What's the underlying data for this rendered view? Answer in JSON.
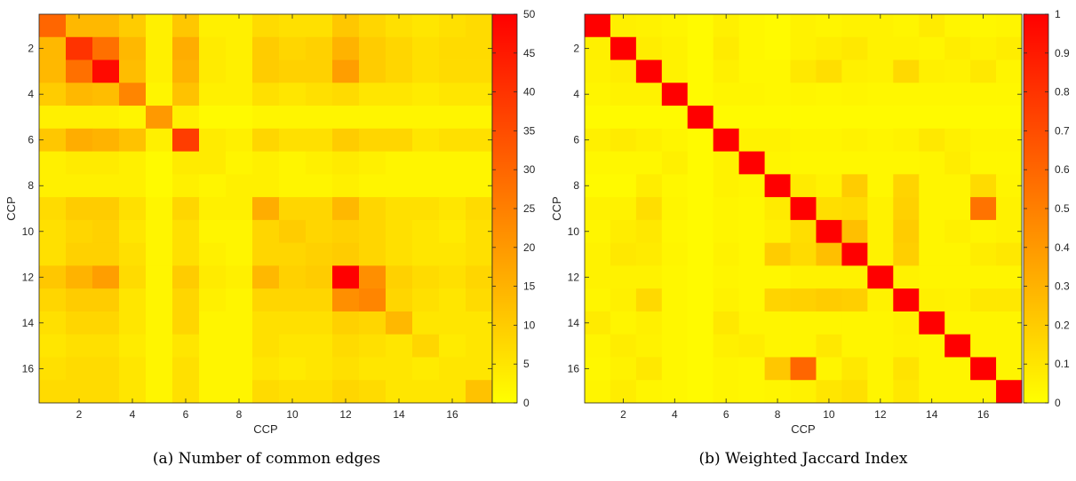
{
  "chart_data": [
    {
      "type": "heatmap",
      "caption": "(a) Number of common edges",
      "xlabel": "CCP",
      "ylabel": "CCP",
      "x_ticks": [
        2,
        4,
        6,
        8,
        10,
        12,
        14,
        16
      ],
      "y_ticks": [
        2,
        4,
        6,
        8,
        10,
        12,
        14,
        16
      ],
      "colorbar": {
        "min": 0,
        "max": 50,
        "ticks": [
          0,
          5,
          10,
          15,
          20,
          25,
          30,
          35,
          40,
          45,
          50
        ]
      },
      "colors": {
        "low": "#ffff00",
        "high": "#ff0000"
      },
      "values": [
        [
          30,
          14,
          14,
          10,
          3,
          11,
          3,
          3,
          7,
          6,
          6,
          11,
          8,
          6,
          5,
          6,
          7
        ],
        [
          14,
          40,
          28,
          14,
          3,
          16,
          4,
          3,
          10,
          8,
          9,
          15,
          10,
          8,
          6,
          7,
          7
        ],
        [
          14,
          28,
          48,
          13,
          3,
          15,
          4,
          3,
          10,
          9,
          9,
          19,
          10,
          8,
          6,
          7,
          7
        ],
        [
          10,
          14,
          13,
          24,
          2,
          12,
          3,
          3,
          6,
          5,
          6,
          7,
          5,
          5,
          4,
          5,
          5
        ],
        [
          3,
          3,
          3,
          2,
          20,
          3,
          1,
          1,
          2,
          2,
          2,
          2,
          2,
          2,
          2,
          2,
          2
        ],
        [
          11,
          16,
          15,
          12,
          3,
          38,
          4,
          3,
          8,
          6,
          6,
          10,
          8,
          8,
          5,
          6,
          6
        ],
        [
          3,
          4,
          4,
          3,
          1,
          4,
          4,
          2,
          3,
          2,
          3,
          4,
          3,
          2,
          2,
          2,
          2
        ],
        [
          3,
          3,
          3,
          3,
          1,
          3,
          2,
          3,
          3,
          2,
          2,
          3,
          2,
          2,
          2,
          2,
          2
        ],
        [
          7,
          10,
          10,
          6,
          2,
          8,
          3,
          3,
          16,
          8,
          8,
          14,
          8,
          6,
          6,
          5,
          7
        ],
        [
          6,
          8,
          9,
          5,
          2,
          6,
          2,
          2,
          8,
          10,
          8,
          9,
          8,
          6,
          5,
          4,
          6
        ],
        [
          6,
          9,
          9,
          6,
          2,
          6,
          3,
          2,
          8,
          8,
          9,
          10,
          8,
          6,
          5,
          5,
          6
        ],
        [
          11,
          15,
          19,
          7,
          2,
          10,
          4,
          3,
          14,
          9,
          10,
          50,
          22,
          9,
          7,
          6,
          8
        ],
        [
          8,
          10,
          10,
          5,
          2,
          8,
          3,
          2,
          8,
          8,
          8,
          22,
          24,
          8,
          6,
          5,
          7
        ],
        [
          6,
          8,
          8,
          5,
          2,
          8,
          2,
          2,
          6,
          6,
          6,
          9,
          8,
          14,
          5,
          5,
          5
        ],
        [
          5,
          6,
          6,
          4,
          2,
          5,
          2,
          2,
          6,
          5,
          5,
          7,
          6,
          5,
          8,
          4,
          5
        ],
        [
          6,
          7,
          7,
          5,
          2,
          6,
          2,
          2,
          5,
          4,
          5,
          6,
          5,
          5,
          4,
          5,
          5
        ],
        [
          7,
          7,
          7,
          5,
          2,
          6,
          2,
          2,
          7,
          6,
          6,
          8,
          7,
          5,
          5,
          5,
          12
        ]
      ]
    },
    {
      "type": "heatmap",
      "caption": "(b) Weighted Jaccard Index",
      "xlabel": "CCP",
      "ylabel": "CCP",
      "x_ticks": [
        2,
        4,
        6,
        8,
        10,
        12,
        14,
        16
      ],
      "y_ticks": [
        2,
        4,
        6,
        8,
        10,
        12,
        14,
        16
      ],
      "colorbar": {
        "min": 0,
        "max": 1,
        "ticks": [
          0,
          0.1,
          0.2,
          0.3,
          0.4,
          0.5,
          0.6,
          0.7,
          0.8,
          0.9,
          1
        ]
      },
      "colors": {
        "low": "#ffff00",
        "high": "#ff0000"
      },
      "values": [
        [
          1,
          0.06,
          0.05,
          0.04,
          0.02,
          0.06,
          0.03,
          0.02,
          0.05,
          0.04,
          0.05,
          0.05,
          0.04,
          0.08,
          0.04,
          0.03,
          0.04
        ],
        [
          0.06,
          1,
          0.07,
          0.05,
          0.02,
          0.08,
          0.03,
          0.02,
          0.05,
          0.07,
          0.09,
          0.05,
          0.05,
          0.04,
          0.07,
          0.05,
          0.07
        ],
        [
          0.05,
          0.07,
          1,
          0.05,
          0.02,
          0.06,
          0.03,
          0.03,
          0.09,
          0.13,
          0.06,
          0.05,
          0.15,
          0.06,
          0.05,
          0.09,
          0.04
        ],
        [
          0.04,
          0.05,
          0.05,
          1,
          0.02,
          0.04,
          0.04,
          0.03,
          0.04,
          0.03,
          0.04,
          0.03,
          0.03,
          0.03,
          0.03,
          0.03,
          0.03
        ],
        [
          0.02,
          0.02,
          0.02,
          0.02,
          1,
          0.02,
          0.02,
          0.02,
          0.02,
          0.02,
          0.02,
          0.02,
          0.02,
          0.02,
          0.02,
          0.02,
          0.02
        ],
        [
          0.06,
          0.08,
          0.06,
          0.04,
          0.02,
          1,
          0.05,
          0.05,
          0.04,
          0.04,
          0.05,
          0.04,
          0.05,
          0.09,
          0.06,
          0.04,
          0.04
        ],
        [
          0.03,
          0.03,
          0.03,
          0.06,
          0.02,
          0.05,
          1,
          0.04,
          0.03,
          0.03,
          0.03,
          0.03,
          0.03,
          0.04,
          0.07,
          0.03,
          0.03
        ],
        [
          0.02,
          0.02,
          0.07,
          0.03,
          0.02,
          0.05,
          0.04,
          1,
          0.08,
          0.05,
          0.2,
          0.03,
          0.17,
          0.04,
          0.04,
          0.14,
          0.04
        ],
        [
          0.05,
          0.05,
          0.13,
          0.04,
          0.02,
          0.04,
          0.03,
          0.08,
          1,
          0.13,
          0.14,
          0.05,
          0.18,
          0.04,
          0.04,
          0.55,
          0.05
        ],
        [
          0.04,
          0.07,
          0.09,
          0.03,
          0.02,
          0.04,
          0.03,
          0.06,
          0.13,
          1,
          0.25,
          0.05,
          0.2,
          0.04,
          0.06,
          0.04,
          0.05
        ],
        [
          0.05,
          0.09,
          0.08,
          0.04,
          0.02,
          0.05,
          0.03,
          0.2,
          0.14,
          0.25,
          1,
          0.05,
          0.19,
          0.04,
          0.04,
          0.07,
          0.09
        ],
        [
          0.05,
          0.05,
          0.05,
          0.03,
          0.02,
          0.04,
          0.03,
          0.03,
          0.05,
          0.05,
          0.05,
          1,
          0.05,
          0.04,
          0.04,
          0.04,
          0.04
        ],
        [
          0.04,
          0.06,
          0.15,
          0.03,
          0.02,
          0.05,
          0.03,
          0.17,
          0.18,
          0.2,
          0.19,
          0.05,
          1,
          0.06,
          0.05,
          0.09,
          0.09
        ],
        [
          0.08,
          0.04,
          0.06,
          0.03,
          0.02,
          0.09,
          0.04,
          0.04,
          0.04,
          0.04,
          0.04,
          0.04,
          0.06,
          1,
          0.04,
          0.04,
          0.04
        ],
        [
          0.04,
          0.07,
          0.05,
          0.03,
          0.02,
          0.06,
          0.07,
          0.04,
          0.04,
          0.09,
          0.04,
          0.04,
          0.05,
          0.04,
          1,
          0.04,
          0.04
        ],
        [
          0.03,
          0.05,
          0.09,
          0.03,
          0.02,
          0.04,
          0.03,
          0.22,
          0.6,
          0.04,
          0.09,
          0.04,
          0.11,
          0.04,
          0.04,
          1,
          0.04
        ],
        [
          0.04,
          0.07,
          0.04,
          0.03,
          0.02,
          0.04,
          0.03,
          0.04,
          0.05,
          0.1,
          0.12,
          0.04,
          0.09,
          0.04,
          0.04,
          0.04,
          1
        ]
      ]
    }
  ]
}
